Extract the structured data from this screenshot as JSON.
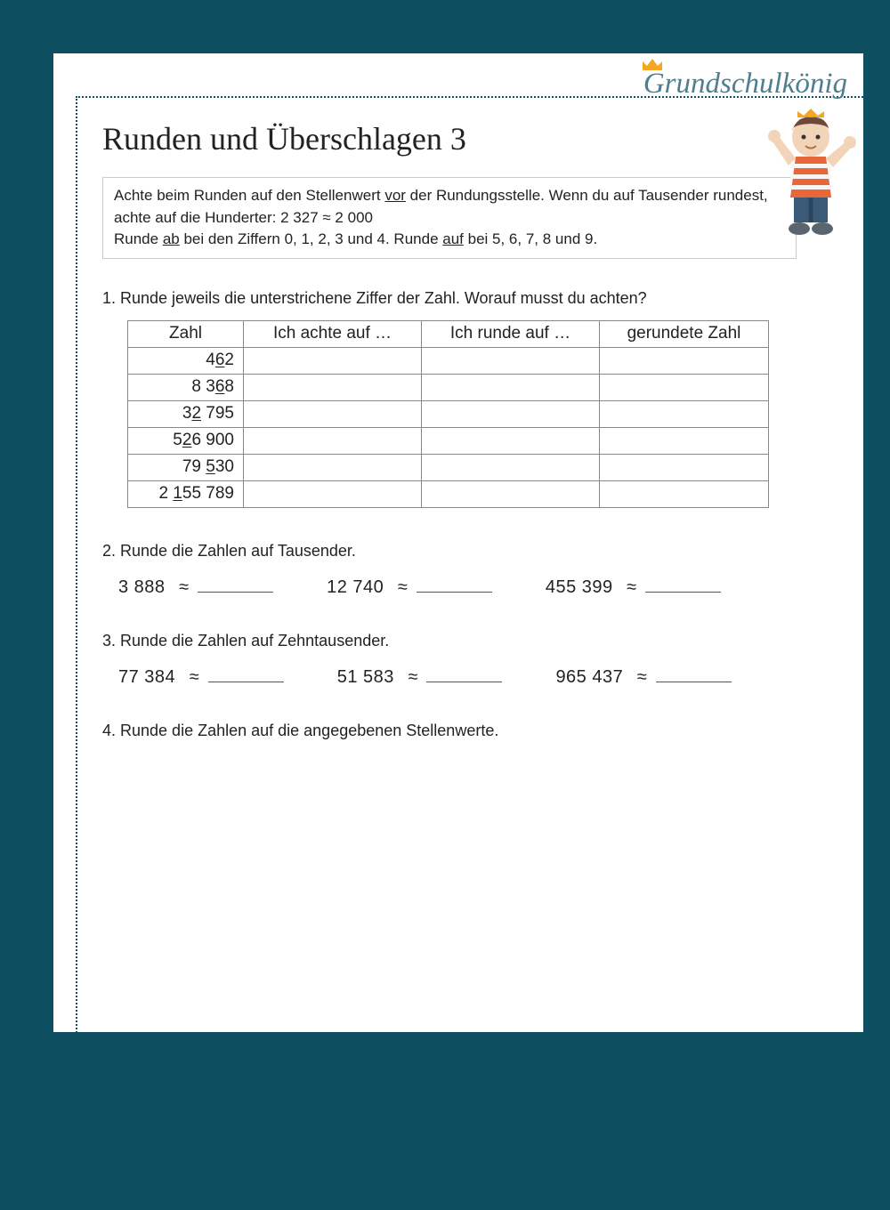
{
  "background_color": "#0d4f61",
  "page_color": "#ffffff",
  "brand": "Grundschulkönig",
  "brand_color": "#4d7f8f",
  "crown_color": "#f5a623",
  "title": "Runden und Überschlagen 3",
  "infobox": {
    "line1a": "Achte beim Runden auf den Stellenwert ",
    "line1b": "vor",
    "line1c": " der Rundungsstelle. Wenn du auf Tausender rundest, achte auf die Hunderter: 2 327 ≈ 2 000",
    "line2a": "Runde ",
    "line2b": "ab",
    "line2c": " bei den Ziffern 0, 1, 2, 3 und 4. Runde ",
    "line2d": "auf",
    "line2e": " bei 5, 6, 7, 8 und 9."
  },
  "task1": {
    "prompt": "1. Runde jeweils die unterstrichene Ziffer der Zahl. Worauf musst du achten?",
    "headers": [
      "Zahl",
      "Ich achte auf …",
      "Ich runde auf …",
      "gerundete Zahl"
    ],
    "rows": [
      {
        "pre": "4",
        "u": "6",
        "post": "2"
      },
      {
        "pre": "8 3",
        "u": "6",
        "post": "8"
      },
      {
        "pre": "3",
        "u": "2",
        "post": " 795"
      },
      {
        "pre": "5",
        "u": "2",
        "post": "6 900"
      },
      {
        "pre": "79 ",
        "u": "5",
        "post": "30"
      },
      {
        "pre": "2 ",
        "u": "1",
        "post": "55 789"
      }
    ]
  },
  "task2": {
    "prompt": "2. Runde die Zahlen auf Tausender.",
    "items": [
      "3 888",
      "12 740",
      "455 399"
    ]
  },
  "task3": {
    "prompt": "3. Runde die Zahlen auf Zehntausender.",
    "items": [
      "77 384",
      "51 583",
      "965 437"
    ]
  },
  "task4": {
    "prompt": "4. Runde die Zahlen auf die angegebenen Stellenwerte."
  },
  "approx": "≈"
}
